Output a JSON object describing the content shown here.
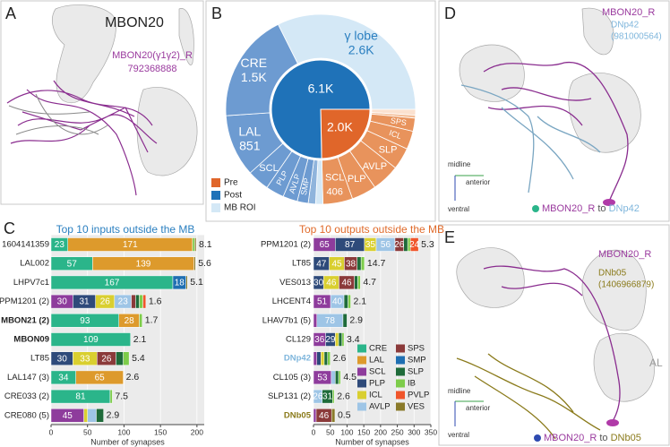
{
  "panels": {
    "A": {
      "letter": "A",
      "title": "MBON20",
      "neuron": "MBON20(γ1γ2)_R",
      "id": "792368888"
    },
    "C": {
      "letter": "C"
    },
    "D": {
      "letter": "D",
      "neuron": "MBON20_R",
      "partner": "DNp42",
      "partner_id": "(981000564)",
      "axes": {
        "midline": "midline",
        "anterior": "anterior",
        "ventral": "ventral"
      },
      "caption": [
        "MBON20_R",
        "to",
        "DNp42"
      ]
    },
    "E": {
      "letter": "E",
      "neuron": "MBON20_R",
      "partner": "DNb05",
      "partner_id": "(1406966879)",
      "region": "AL",
      "axes": {
        "midline": "midline",
        "anterior": "anterior",
        "ventral": "ventral"
      },
      "caption": [
        "MBON20_R",
        "to",
        "DNb05"
      ]
    }
  },
  "chart_data": [
    {
      "type": "pie",
      "letter": "B",
      "inner": {
        "values": [
          2000,
          6100
        ],
        "value_labels": [
          "2.0K",
          "6.1K"
        ],
        "colors": [
          "#e0662a",
          "#1f72b8"
        ]
      },
      "outer": {
        "categories": [
          null,
          null,
          "SPS",
          "ICL",
          "SLP",
          "AVLP",
          "PLP",
          "SCL",
          null,
          null,
          "SMP",
          "AVLP",
          "PLP",
          "SCL",
          "LAL",
          "CRE",
          "γ lobe"
        ],
        "values": [
          80,
          40,
          180,
          250,
          300,
          380,
          340,
          406,
          100,
          100,
          150,
          200,
          250,
          300,
          851,
          1500,
          2600
        ],
        "value_labels": [
          null,
          null,
          null,
          null,
          null,
          null,
          null,
          "406",
          null,
          null,
          null,
          null,
          null,
          null,
          "851",
          "1.5K",
          "2.6K"
        ],
        "colors": [
          "#fbe1cf",
          "#f3bd97",
          "#e8935c",
          "#e8935c",
          "#e8935c",
          "#e8935c",
          "#e8935c",
          "#e8935c",
          "#d4e8f6",
          "#8fb4dc",
          "#6d9bd1",
          "#6d9bd1",
          "#6d9bd1",
          "#6d9bd1",
          "#6d9bd1",
          "#6d9bd1",
          "#d4e8f6"
        ]
      },
      "legend": [
        {
          "name": "Pre",
          "color": "#e0662a"
        },
        {
          "name": "Post",
          "color": "#1f72b8"
        },
        {
          "name": "MB ROI",
          "color": "#d4e8f6"
        }
      ]
    },
    {
      "type": "bar",
      "orientation": "horizontal",
      "stacked": true,
      "title": "Top 10 inputs outside the MB",
      "title_color": "#2a7fc0",
      "xlabel": "Number of synapses",
      "categories": [
        "1604141359",
        "LAL002",
        "LHPV7c1",
        "PPM1201 (2)",
        "MBON21 (2)",
        "MBON09",
        "LT85",
        "LAL147 (3)",
        "CRE033 (2)",
        "CRE080 (5)"
      ],
      "bold": [
        false,
        false,
        false,
        false,
        true,
        true,
        false,
        false,
        false,
        false
      ],
      "label_colors": [
        "#222",
        "#222",
        "#222",
        "#222",
        "#222",
        "#222",
        "#222",
        "#222",
        "#222",
        "#222"
      ],
      "percentages": [
        8.1,
        5.6,
        5.1,
        1.6,
        1.7,
        2.1,
        5.4,
        2.6,
        7.5,
        2.9
      ],
      "xlim": [
        0,
        210
      ],
      "xticks": [
        0,
        50,
        100,
        150,
        200
      ],
      "series": [
        {
          "values": [
            23,
            57,
            167,
            null,
            93,
            109,
            null,
            34,
            81,
            null
          ]
        },
        {
          "values": [
            171,
            139,
            null,
            null,
            28,
            null,
            null,
            65,
            null,
            null
          ]
        },
        {
          "values": [
            null,
            null,
            null,
            30,
            null,
            null,
            null,
            null,
            null,
            45
          ]
        },
        {
          "values": [
            null,
            null,
            null,
            31,
            null,
            null,
            30,
            null,
            null,
            null
          ]
        },
        {
          "values": [
            null,
            null,
            null,
            26,
            null,
            null,
            33,
            null,
            null,
            5
          ]
        },
        {
          "values": [
            null,
            null,
            null,
            23,
            null,
            null,
            null,
            null,
            null,
            12
          ]
        },
        {
          "values": [
            null,
            null,
            null,
            6,
            null,
            null,
            26,
            null,
            null,
            null
          ]
        },
        {
          "values": [
            null,
            null,
            18,
            null,
            null,
            null,
            null,
            null,
            null,
            null
          ]
        },
        {
          "values": [
            null,
            null,
            null,
            5,
            null,
            null,
            10,
            null,
            null,
            10
          ]
        },
        {
          "values": [
            3,
            null,
            null,
            5,
            4,
            null,
            8,
            null,
            3,
            null
          ]
        },
        {
          "values": [
            null,
            null,
            null,
            4,
            null,
            null,
            null,
            null,
            null,
            null
          ]
        },
        {
          "values": [
            2,
            2,
            2,
            null,
            null,
            null,
            null,
            null,
            null,
            null
          ]
        }
      ]
    },
    {
      "type": "bar",
      "orientation": "horizontal",
      "stacked": true,
      "title": "Top 10 outputs outside the MB",
      "title_color": "#e06a2a",
      "xlabel": "Number of synapses",
      "categories": [
        "PPM1201 (2)",
        "LT85",
        "VES013",
        "LHCENT4",
        "LHAV7b1 (5)",
        "CL129",
        "DNp42",
        "CL105 (3)",
        "SLP131 (2)",
        "DNb05"
      ],
      "bold": [
        false,
        false,
        false,
        false,
        false,
        false,
        true,
        false,
        false,
        true
      ],
      "label_colors": [
        "#222",
        "#222",
        "#222",
        "#222",
        "#222",
        "#222",
        "#7fb6dc",
        "#222",
        "#222",
        "#8a7a1a"
      ],
      "percentages": [
        5.3,
        14.7,
        4.7,
        2.1,
        2.9,
        3.4,
        2.6,
        4.5,
        2.6,
        0.5
      ],
      "xlim": [
        0,
        350
      ],
      "xticks": [
        0,
        50,
        100,
        150,
        200,
        250,
        300,
        350
      ],
      "series": [
        {
          "name": "CRE",
          "color": "#2bb58a",
          "values": [
            null,
            null,
            null,
            null,
            null,
            null,
            null,
            null,
            null,
            null
          ]
        },
        {
          "name": "LAL",
          "color": "#dd9a2c",
          "values": [
            null,
            null,
            null,
            null,
            null,
            null,
            null,
            null,
            null,
            null
          ]
        },
        {
          "name": "SCL",
          "color": "#8e3c9c",
          "values": [
            65,
            null,
            null,
            51,
            10,
            36,
            10,
            53,
            null,
            8
          ]
        },
        {
          "name": "PLP",
          "color": "#2e4a7a",
          "values": [
            87,
            47,
            30,
            null,
            null,
            29,
            12,
            null,
            null,
            null
          ]
        },
        {
          "name": "ICL",
          "color": "#d9cf30",
          "values": [
            35,
            45,
            46,
            null,
            null,
            10,
            10,
            null,
            null,
            null
          ]
        },
        {
          "name": "AVLP",
          "color": "#9ec5e6",
          "values": [
            56,
            null,
            null,
            40,
            78,
            null,
            null,
            12,
            26,
            null
          ]
        },
        {
          "name": "SPS",
          "color": "#8b3a3a",
          "values": [
            26,
            38,
            46,
            null,
            null,
            null,
            null,
            null,
            null,
            46
          ]
        },
        {
          "name": "SMP",
          "color": "#1f6fb2",
          "values": [
            null,
            null,
            null,
            null,
            null,
            null,
            null,
            null,
            null,
            null
          ]
        },
        {
          "name": "SLP",
          "color": "#1f6b3a",
          "values": [
            12,
            12,
            10,
            12,
            12,
            10,
            10,
            10,
            31,
            null
          ]
        },
        {
          "name": "IB",
          "color": "#7dcc4a",
          "values": [
            8,
            10,
            8,
            8,
            null,
            6,
            8,
            6,
            5,
            null
          ]
        },
        {
          "name": "PVLP",
          "color": "#f0552b",
          "values": [
            24,
            null,
            null,
            null,
            null,
            null,
            null,
            null,
            null,
            null
          ]
        },
        {
          "name": "VES",
          "color": "#8a7a2a",
          "values": [
            null,
            null,
            null,
            null,
            null,
            null,
            null,
            null,
            null,
            10
          ]
        }
      ]
    }
  ]
}
